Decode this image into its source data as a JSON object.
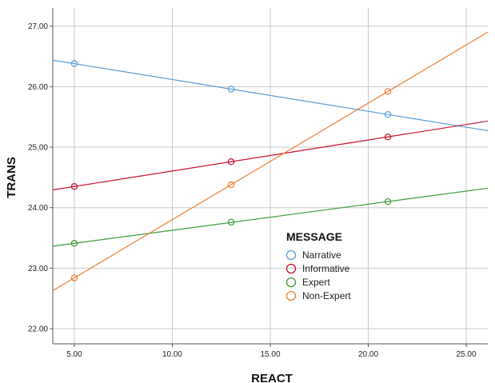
{
  "chart_data": {
    "type": "scatter",
    "xlabel": "REACT",
    "ylabel": "TRANS",
    "xlim": [
      3.9,
      26.1
    ],
    "ylim": [
      21.75,
      27.3
    ],
    "x_ticks": [
      5,
      10,
      15,
      20,
      25
    ],
    "y_ticks": [
      22,
      23,
      24,
      25,
      26,
      27
    ],
    "x_tick_labels": [
      "5.00",
      "10.00",
      "15.00",
      "20.00",
      "25.00"
    ],
    "y_tick_labels": [
      "22.00",
      "23.00",
      "24.00",
      "25.00",
      "26.00",
      "27.00"
    ],
    "grid": true,
    "legend": {
      "title": "MESSAGE",
      "placement": "center-right"
    },
    "series": [
      {
        "name": "Narrative",
        "color": "#5b9bd5",
        "x": [
          5,
          13,
          21
        ],
        "y": [
          26.38,
          25.96,
          25.54
        ],
        "fit": {
          "slope": -0.0525,
          "intercept": 26.6425
        }
      },
      {
        "name": "Informative",
        "color": "#c8102e",
        "x": [
          5,
          13,
          21
        ],
        "y": [
          24.35,
          24.76,
          25.17
        ],
        "fit": {
          "slope": 0.05125,
          "intercept": 24.09375
        }
      },
      {
        "name": "Expert",
        "color": "#3d9a3a",
        "x": [
          5,
          13,
          21
        ],
        "y": [
          23.41,
          23.76,
          24.1
        ],
        "fit": {
          "slope": 0.043125,
          "intercept": 23.1952
        }
      },
      {
        "name": "Non-Expert",
        "color": "#ed7d31",
        "x": [
          5,
          13,
          21
        ],
        "y": [
          22.84,
          24.38,
          25.92
        ],
        "fit": {
          "slope": 0.1925,
          "intercept": 21.8775
        }
      }
    ]
  }
}
